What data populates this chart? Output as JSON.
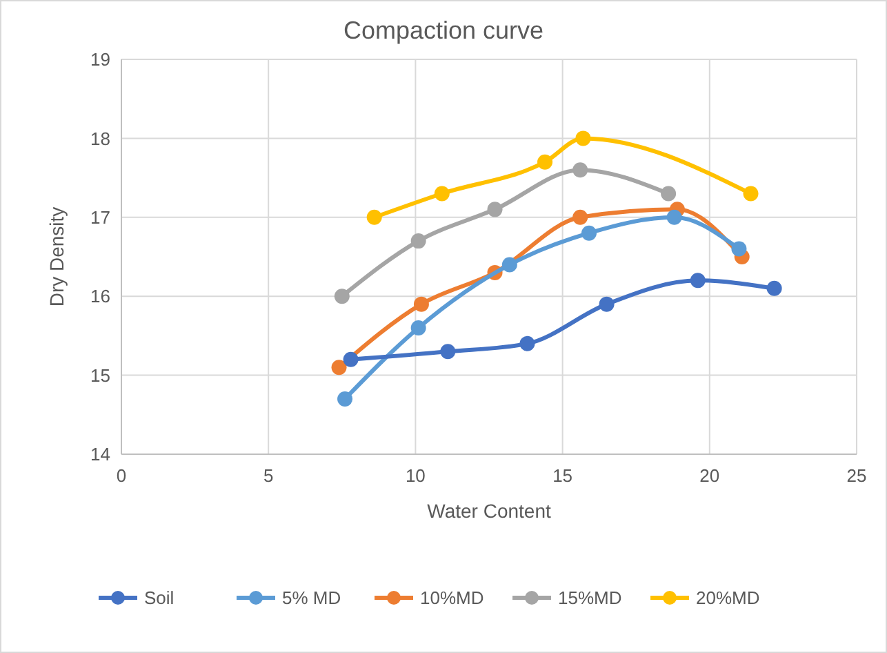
{
  "chart_data": {
    "type": "line",
    "title": "Compaction curve",
    "xlabel": "Water Content",
    "ylabel": "Dry Density",
    "xlim": [
      0,
      25
    ],
    "xticks": [
      0,
      5,
      10,
      15,
      20,
      25
    ],
    "ylim": [
      14,
      19
    ],
    "yticks": [
      14,
      15,
      16,
      17,
      18,
      19
    ],
    "grid": true,
    "legend": "bottom",
    "marker": "circle",
    "series": [
      {
        "name": "Soil",
        "color": "#4472c4",
        "x": [
          7.8,
          11.1,
          13.8,
          16.5,
          19.6,
          22.2
        ],
        "values": [
          15.2,
          15.3,
          15.4,
          15.9,
          16.2,
          16.1
        ]
      },
      {
        "name": "5% MD",
        "color": "#5b9bd5",
        "x": [
          7.6,
          10.1,
          13.2,
          15.9,
          18.8,
          21.0
        ],
        "values": [
          14.7,
          15.6,
          16.4,
          16.8,
          17.0,
          16.6
        ]
      },
      {
        "name": "10%MD",
        "color": "#ed7d31",
        "x": [
          7.4,
          10.2,
          12.7,
          15.6,
          18.9,
          21.1
        ],
        "values": [
          15.1,
          15.9,
          16.3,
          17.0,
          17.1,
          16.5
        ]
      },
      {
        "name": "15%MD",
        "color": "#a5a5a5",
        "x": [
          7.5,
          10.1,
          12.7,
          15.6,
          18.6
        ],
        "values": [
          16.0,
          16.7,
          17.1,
          17.6,
          17.3
        ]
      },
      {
        "name": "20%MD",
        "color": "#ffc000",
        "x": [
          8.6,
          10.9,
          14.4,
          15.7,
          21.4
        ],
        "values": [
          17.0,
          17.3,
          17.7,
          18.0,
          17.3
        ]
      }
    ]
  }
}
